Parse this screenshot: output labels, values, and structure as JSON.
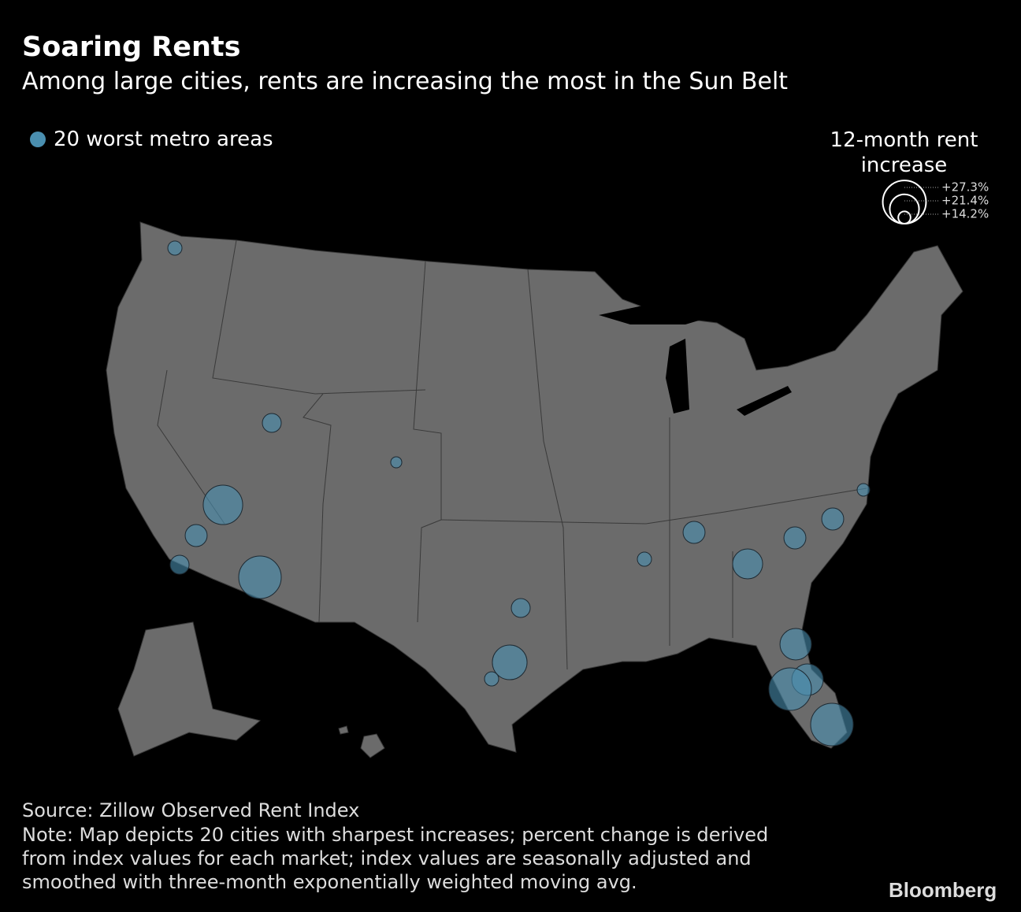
{
  "chart_data": {
    "type": "bubble-map",
    "title": "Soaring Rents",
    "subtitle": "Among large cities, rents are increasing the most in the Sun Belt",
    "legend_label": "20 worst metro areas",
    "size_title": "12-month rent increase",
    "color": "#4a8fb0",
    "size_legend": {
      "values": [
        27.3,
        21.4,
        14.2
      ],
      "value_labels": [
        "+27.3%",
        "+21.4%",
        "+14.2%"
      ]
    },
    "values": [
      15,
      17,
      13.7,
      25.7,
      18.3,
      17,
      27,
      17,
      23.7,
      15,
      15,
      18.3,
      21.7,
      18.3,
      18.3,
      14.3,
      22.3,
      22.3,
      27,
      27
    ],
    "source": "Source: Zillow Observed Rent Index",
    "note": "Note: Map depicts 20 cities with sharpest increases; percent change is derived from index values for each market; index values are seasonally adjusted and smoothed with three-month exponentially weighted moving avg.",
    "brand": "Bloomberg"
  }
}
